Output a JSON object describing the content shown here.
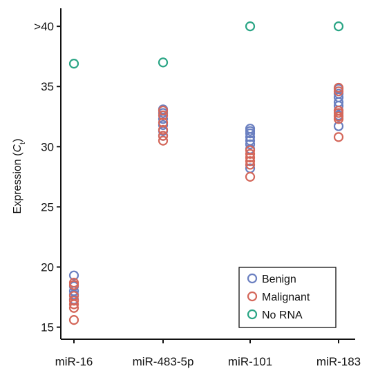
{
  "chart_data": {
    "type": "scatter",
    "categories": [
      "miR-16",
      "miR-483-5p",
      "miR-101",
      "miR-183"
    ],
    "y_ticks": [
      {
        "value": 15,
        "label": "15"
      },
      {
        "value": 20,
        "label": "20"
      },
      {
        "value": 25,
        "label": "25"
      },
      {
        "value": 30,
        "label": "30"
      },
      {
        "value": 35,
        "label": "35"
      },
      {
        "value": 40,
        "label": ">40"
      }
    ],
    "ylim": [
      14.0,
      41.5
    ],
    "ylabel": {
      "prefix": "Expression (",
      "italic": "C",
      "subscript": "t",
      "suffix": ")"
    },
    "legend": {
      "position": "bottom-right"
    },
    "series": [
      {
        "name": "Benign",
        "color": "#6a7fc0",
        "values": [
          [
            19.3,
            18.4,
            18.0,
            17.7,
            17.3
          ],
          [
            33.1,
            32.8,
            32.3,
            31.8,
            31.3,
            30.9
          ],
          [
            31.5,
            31.3,
            31.1,
            30.8,
            30.5,
            30.2,
            29.8,
            28.2
          ],
          [
            34.8,
            34.4,
            34.1,
            33.7,
            33.4,
            33.0,
            32.6,
            31.7
          ]
        ]
      },
      {
        "name": "Malignant",
        "color": "#d4675a",
        "values": [
          [
            18.7,
            18.5,
            17.6,
            17.2,
            16.9,
            16.6,
            15.6
          ],
          [
            33.0,
            32.6,
            32.0,
            31.4,
            30.9,
            30.5
          ],
          [
            29.7,
            29.4,
            29.1,
            28.8,
            28.5,
            27.5
          ],
          [
            34.9,
            34.6,
            33.0,
            32.8,
            32.5,
            32.3,
            30.8
          ]
        ]
      },
      {
        "name": "No RNA",
        "color": "#2aa585",
        "values": [
          [
            36.9
          ],
          [
            37.0
          ],
          [
            40.0
          ],
          [
            40.0
          ]
        ]
      }
    ]
  }
}
